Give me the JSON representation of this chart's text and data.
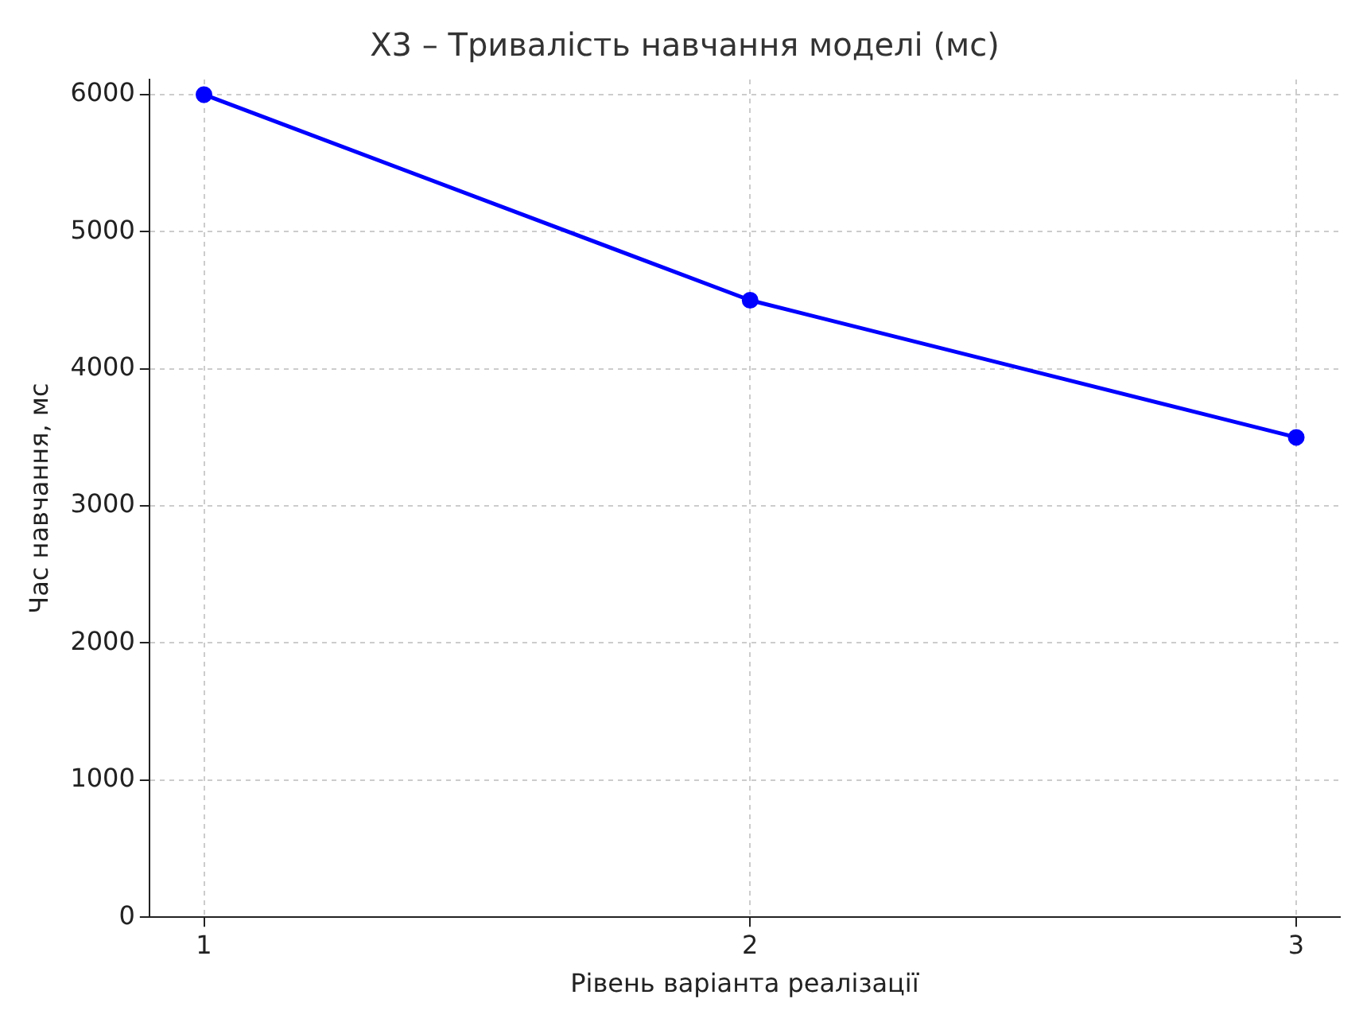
{
  "chart_data": {
    "type": "line",
    "title": "X3 – Тривалість навчання моделі (мс)",
    "xlabel": "Рівень варіанта реалізації",
    "ylabel": "Час навчання, мс",
    "x": [
      1,
      2,
      3
    ],
    "series": [
      {
        "color": "#0000ff",
        "values": [
          6000,
          4500,
          3500
        ]
      }
    ],
    "xlim": [
      0.9,
      3.08
    ],
    "xticks": [
      1,
      2,
      3
    ],
    "ylim": [
      0,
      6110
    ],
    "yticks": [
      0,
      1000,
      2000,
      3000,
      4000,
      5000,
      6000
    ],
    "grid": true,
    "legend": false,
    "marker": "circle",
    "line_style": "solid"
  }
}
